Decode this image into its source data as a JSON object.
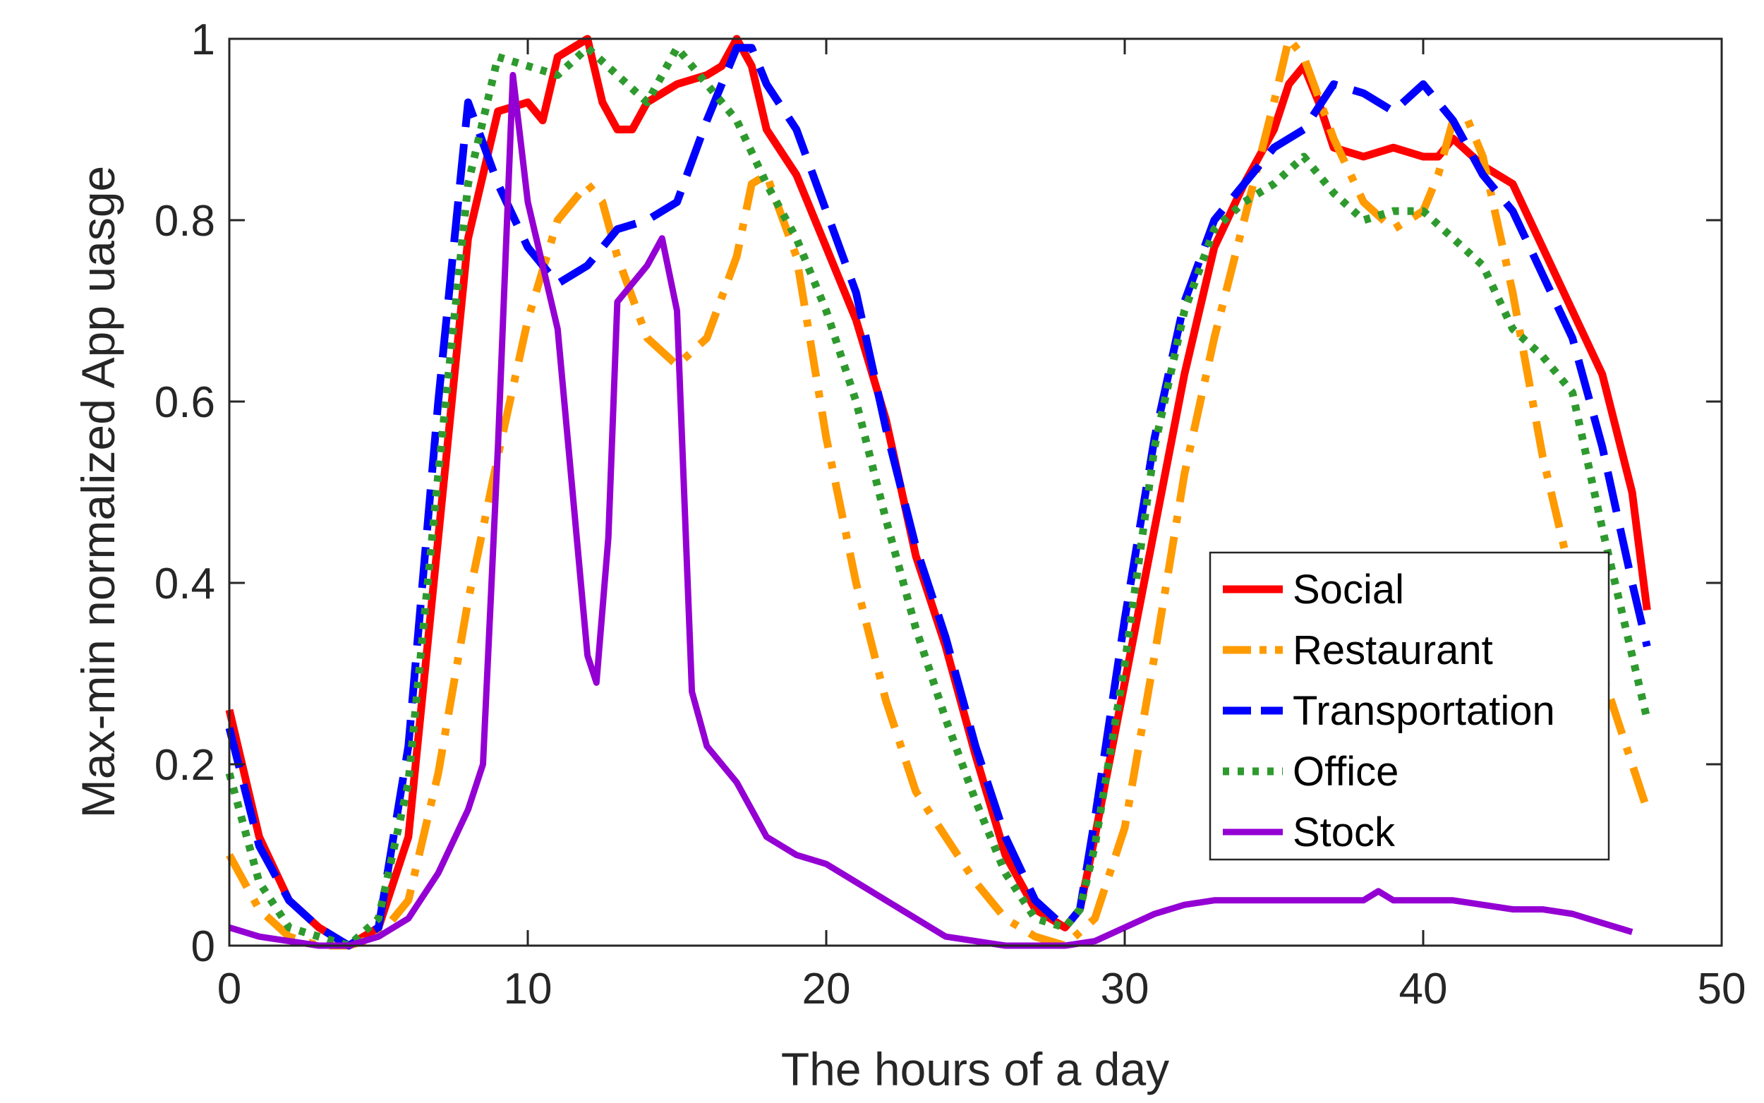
{
  "chart_data": {
    "type": "line",
    "title": "",
    "xlabel": "The hours of a day",
    "ylabel": "Max-min normalized App uasge",
    "xlim": [
      0,
      50
    ],
    "ylim": [
      0,
      1
    ],
    "xticks": [
      0,
      10,
      20,
      30,
      40,
      50
    ],
    "xtick_labels": [
      "0",
      "10",
      "20",
      "30",
      "40",
      "50"
    ],
    "yticks": [
      0,
      0.2,
      0.4,
      0.6,
      0.8,
      1
    ],
    "ytick_labels": [
      "0",
      "0.2",
      "0.4",
      "0.6",
      "0.8",
      "1"
    ],
    "grid": false,
    "legend_position": "lower-right",
    "series": [
      {
        "name": "Social",
        "color": "#ff0000",
        "style": "solid",
        "points": [
          [
            0,
            0.26
          ],
          [
            1,
            0.12
          ],
          [
            2,
            0.05
          ],
          [
            3,
            0.02
          ],
          [
            4,
            0.0
          ],
          [
            5,
            0.02
          ],
          [
            6,
            0.12
          ],
          [
            7,
            0.45
          ],
          [
            8,
            0.78
          ],
          [
            9,
            0.92
          ],
          [
            10,
            0.93
          ],
          [
            10.5,
            0.91
          ],
          [
            11,
            0.98
          ],
          [
            12,
            1.0
          ],
          [
            12.5,
            0.93
          ],
          [
            13,
            0.9
          ],
          [
            13.5,
            0.9
          ],
          [
            14,
            0.93
          ],
          [
            15,
            0.95
          ],
          [
            16,
            0.96
          ],
          [
            16.5,
            0.97
          ],
          [
            17,
            1.0
          ],
          [
            17.5,
            0.97
          ],
          [
            18,
            0.9
          ],
          [
            19,
            0.85
          ],
          [
            20,
            0.77
          ],
          [
            21,
            0.69
          ],
          [
            22,
            0.58
          ],
          [
            23,
            0.43
          ],
          [
            24,
            0.33
          ],
          [
            25,
            0.21
          ],
          [
            26,
            0.1
          ],
          [
            27,
            0.04
          ],
          [
            28,
            0.02
          ],
          [
            28.5,
            0.04
          ],
          [
            29,
            0.12
          ],
          [
            30,
            0.29
          ],
          [
            31,
            0.46
          ],
          [
            32,
            0.63
          ],
          [
            33,
            0.77
          ],
          [
            34,
            0.84
          ],
          [
            35,
            0.9
          ],
          [
            35.5,
            0.95
          ],
          [
            36,
            0.97
          ],
          [
            36.5,
            0.93
          ],
          [
            37,
            0.88
          ],
          [
            38,
            0.87
          ],
          [
            39,
            0.88
          ],
          [
            40,
            0.87
          ],
          [
            40.5,
            0.87
          ],
          [
            41,
            0.89
          ],
          [
            42,
            0.86
          ],
          [
            43,
            0.84
          ],
          [
            44,
            0.77
          ],
          [
            45,
            0.7
          ],
          [
            46,
            0.63
          ],
          [
            47,
            0.5
          ],
          [
            47.5,
            0.37
          ]
        ]
      },
      {
        "name": "Restaurant",
        "color": "#ff9a00",
        "style": "dashdot",
        "points": [
          [
            0,
            0.1
          ],
          [
            1,
            0.04
          ],
          [
            2,
            0.01
          ],
          [
            3,
            0.0
          ],
          [
            4,
            0.0
          ],
          [
            5,
            0.01
          ],
          [
            6,
            0.05
          ],
          [
            7,
            0.19
          ],
          [
            8,
            0.38
          ],
          [
            9,
            0.54
          ],
          [
            10,
            0.69
          ],
          [
            11,
            0.8
          ],
          [
            12,
            0.84
          ],
          [
            12.5,
            0.82
          ],
          [
            13,
            0.76
          ],
          [
            14,
            0.67
          ],
          [
            15,
            0.64
          ],
          [
            16,
            0.67
          ],
          [
            17,
            0.76
          ],
          [
            17.5,
            0.84
          ],
          [
            18,
            0.85
          ],
          [
            19,
            0.76
          ],
          [
            20,
            0.56
          ],
          [
            21,
            0.4
          ],
          [
            22,
            0.27
          ],
          [
            23,
            0.17
          ],
          [
            24,
            0.12
          ],
          [
            25,
            0.07
          ],
          [
            26,
            0.03
          ],
          [
            27,
            0.01
          ],
          [
            28,
            0.0
          ],
          [
            29,
            0.03
          ],
          [
            30,
            0.13
          ],
          [
            31,
            0.32
          ],
          [
            32,
            0.52
          ],
          [
            33,
            0.67
          ],
          [
            34,
            0.8
          ],
          [
            35,
            0.93
          ],
          [
            35.5,
            1.0
          ],
          [
            36,
            0.98
          ],
          [
            37,
            0.89
          ],
          [
            38,
            0.82
          ],
          [
            39,
            0.79
          ],
          [
            40,
            0.81
          ],
          [
            40.5,
            0.85
          ],
          [
            41,
            0.91
          ],
          [
            41.5,
            0.91
          ],
          [
            42,
            0.87
          ],
          [
            43,
            0.72
          ],
          [
            44,
            0.54
          ],
          [
            45,
            0.4
          ],
          [
            46,
            0.3
          ],
          [
            47,
            0.2
          ],
          [
            47.5,
            0.15
          ]
        ]
      },
      {
        "name": "Transportation",
        "color": "#0000ff",
        "style": "dashed",
        "points": [
          [
            0,
            0.24
          ],
          [
            1,
            0.11
          ],
          [
            2,
            0.05
          ],
          [
            3,
            0.02
          ],
          [
            4,
            0.0
          ],
          [
            5,
            0.02
          ],
          [
            6,
            0.22
          ],
          [
            7,
            0.6
          ],
          [
            8,
            0.93
          ],
          [
            9,
            0.84
          ],
          [
            10,
            0.77
          ],
          [
            11,
            0.73
          ],
          [
            12,
            0.75
          ],
          [
            13,
            0.79
          ],
          [
            14,
            0.8
          ],
          [
            15,
            0.82
          ],
          [
            16,
            0.91
          ],
          [
            17,
            0.99
          ],
          [
            17.5,
            0.99
          ],
          [
            18,
            0.95
          ],
          [
            19,
            0.9
          ],
          [
            20,
            0.81
          ],
          [
            21,
            0.72
          ],
          [
            22,
            0.57
          ],
          [
            23,
            0.44
          ],
          [
            24,
            0.34
          ],
          [
            25,
            0.22
          ],
          [
            26,
            0.12
          ],
          [
            27,
            0.05
          ],
          [
            28,
            0.02
          ],
          [
            28.5,
            0.04
          ],
          [
            29,
            0.14
          ],
          [
            30,
            0.36
          ],
          [
            31,
            0.56
          ],
          [
            32,
            0.71
          ],
          [
            33,
            0.8
          ],
          [
            34,
            0.84
          ],
          [
            35,
            0.88
          ],
          [
            36,
            0.9
          ],
          [
            37,
            0.95
          ],
          [
            38,
            0.94
          ],
          [
            39,
            0.92
          ],
          [
            40,
            0.95
          ],
          [
            41,
            0.91
          ],
          [
            42,
            0.85
          ],
          [
            43,
            0.81
          ],
          [
            44,
            0.74
          ],
          [
            45,
            0.67
          ],
          [
            46,
            0.55
          ],
          [
            47,
            0.4
          ],
          [
            47.5,
            0.33
          ]
        ]
      },
      {
        "name": "Office",
        "color": "#2e9a2e",
        "style": "dotted",
        "points": [
          [
            0,
            0.19
          ],
          [
            1,
            0.07
          ],
          [
            2,
            0.02
          ],
          [
            3,
            0.01
          ],
          [
            4,
            0.0
          ],
          [
            5,
            0.03
          ],
          [
            6,
            0.18
          ],
          [
            7,
            0.52
          ],
          [
            8,
            0.84
          ],
          [
            9,
            0.98
          ],
          [
            10,
            0.97
          ],
          [
            11,
            0.96
          ],
          [
            12,
            0.99
          ],
          [
            13,
            0.96
          ],
          [
            14,
            0.93
          ],
          [
            15,
            0.99
          ],
          [
            16,
            0.95
          ],
          [
            17,
            0.91
          ],
          [
            18,
            0.84
          ],
          [
            19,
            0.78
          ],
          [
            20,
            0.7
          ],
          [
            21,
            0.6
          ],
          [
            22,
            0.47
          ],
          [
            23,
            0.35
          ],
          [
            24,
            0.25
          ],
          [
            25,
            0.16
          ],
          [
            26,
            0.08
          ],
          [
            27,
            0.03
          ],
          [
            28,
            0.02
          ],
          [
            28.5,
            0.04
          ],
          [
            29,
            0.11
          ],
          [
            30,
            0.31
          ],
          [
            31,
            0.55
          ],
          [
            32,
            0.7
          ],
          [
            33,
            0.79
          ],
          [
            34,
            0.82
          ],
          [
            35,
            0.84
          ],
          [
            36,
            0.87
          ],
          [
            37,
            0.83
          ],
          [
            38,
            0.8
          ],
          [
            39,
            0.81
          ],
          [
            40,
            0.81
          ],
          [
            41,
            0.78
          ],
          [
            42,
            0.75
          ],
          [
            43,
            0.68
          ],
          [
            44,
            0.65
          ],
          [
            45,
            0.61
          ],
          [
            46,
            0.46
          ],
          [
            47,
            0.32
          ],
          [
            47.5,
            0.25
          ]
        ]
      },
      {
        "name": "Stock",
        "color": "#9400d3",
        "style": "solid",
        "points": [
          [
            0,
            0.02
          ],
          [
            1,
            0.01
          ],
          [
            2,
            0.005
          ],
          [
            3,
            0.0
          ],
          [
            4,
            0.0
          ],
          [
            5,
            0.01
          ],
          [
            6,
            0.03
          ],
          [
            7,
            0.08
          ],
          [
            8,
            0.15
          ],
          [
            8.5,
            0.2
          ],
          [
            9,
            0.55
          ],
          [
            9.5,
            0.96
          ],
          [
            10,
            0.82
          ],
          [
            11,
            0.68
          ],
          [
            11.5,
            0.5
          ],
          [
            12,
            0.32
          ],
          [
            12.3,
            0.29
          ],
          [
            12.7,
            0.45
          ],
          [
            13,
            0.71
          ],
          [
            14,
            0.75
          ],
          [
            14.5,
            0.78
          ],
          [
            15,
            0.7
          ],
          [
            15.5,
            0.28
          ],
          [
            16,
            0.22
          ],
          [
            17,
            0.18
          ],
          [
            18,
            0.12
          ],
          [
            19,
            0.1
          ],
          [
            20,
            0.09
          ],
          [
            21,
            0.07
          ],
          [
            22,
            0.05
          ],
          [
            23,
            0.03
          ],
          [
            24,
            0.01
          ],
          [
            25,
            0.005
          ],
          [
            26,
            0.0
          ],
          [
            27,
            0.0
          ],
          [
            28,
            0.0
          ],
          [
            29,
            0.005
          ],
          [
            30,
            0.02
          ],
          [
            31,
            0.035
          ],
          [
            32,
            0.045
          ],
          [
            33,
            0.05
          ],
          [
            34,
            0.05
          ],
          [
            35,
            0.05
          ],
          [
            36,
            0.05
          ],
          [
            37,
            0.05
          ],
          [
            38,
            0.05
          ],
          [
            38.5,
            0.06
          ],
          [
            39,
            0.05
          ],
          [
            40,
            0.05
          ],
          [
            41,
            0.05
          ],
          [
            42,
            0.045
          ],
          [
            43,
            0.04
          ],
          [
            44,
            0.04
          ],
          [
            45,
            0.035
          ],
          [
            46,
            0.025
          ],
          [
            47,
            0.015
          ]
        ]
      }
    ]
  }
}
